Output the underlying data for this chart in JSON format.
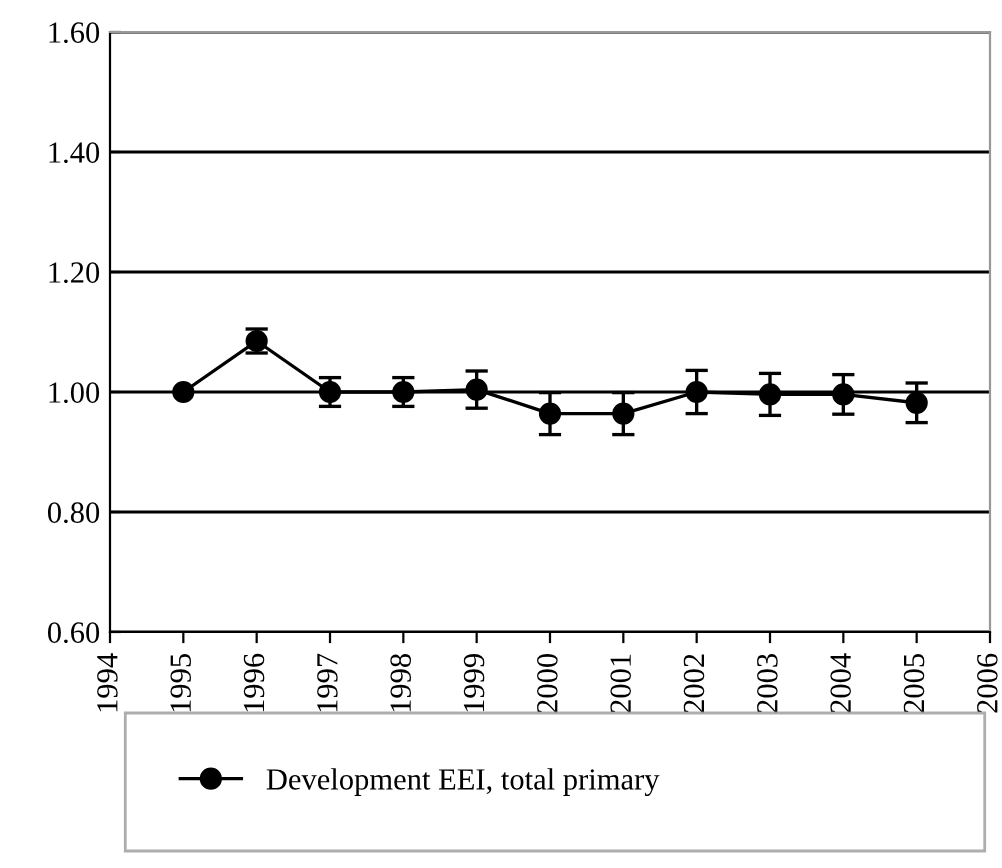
{
  "chart_data": {
    "type": "line",
    "x": [
      1995,
      1996,
      1997,
      1998,
      1999,
      2000,
      2001,
      2002,
      2003,
      2004,
      2005
    ],
    "series": [
      {
        "name": "Development EEI, total primary",
        "color": "#000000",
        "values": [
          1.0,
          1.085,
          1.0,
          1.0,
          1.004,
          0.964,
          0.964,
          1.0,
          0.996,
          0.996,
          0.982
        ],
        "errors": [
          null,
          0.02,
          0.024,
          0.024,
          0.031,
          0.035,
          0.035,
          0.036,
          0.035,
          0.033,
          0.033
        ]
      }
    ],
    "xlim": [
      1994,
      2006
    ],
    "xticks": [
      1994,
      1995,
      1996,
      1997,
      1998,
      1999,
      2000,
      2001,
      2002,
      2003,
      2004,
      2005,
      2006
    ],
    "ylim": [
      0.6,
      1.6
    ],
    "yticks": [
      {
        "value": 0.6,
        "label": "0.60"
      },
      {
        "value": 0.8,
        "label": "0.80"
      },
      {
        "value": 1.0,
        "label": "1.00"
      },
      {
        "value": 1.2,
        "label": "1.20"
      },
      {
        "value": 1.4,
        "label": "1.40"
      },
      {
        "value": 1.6,
        "label": "1.60"
      }
    ],
    "grid": "y",
    "legend": "bottom",
    "marker": "circle",
    "line_style": "solid"
  }
}
